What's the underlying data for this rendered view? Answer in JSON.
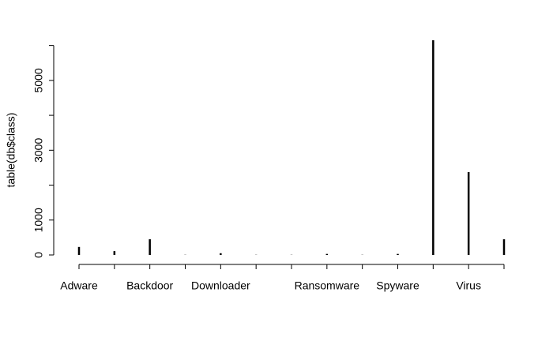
{
  "chart_data": {
    "type": "histogram-lines",
    "y_label": "table(db$class)",
    "categories": [
      "Adware",
      null,
      "Backdoor",
      null,
      "Downloader",
      null,
      null,
      "Ransomware",
      null,
      "Spyware",
      null,
      "Virus",
      null
    ],
    "values": [
      230,
      110,
      450,
      5,
      50,
      5,
      5,
      30,
      5,
      30,
      6150,
      2375,
      450
    ],
    "color": "#000000",
    "ylim": [
      0,
      6150
    ],
    "yticks": [
      0,
      1000,
      3000,
      5000
    ],
    "yticks_unlabeled": [
      2000,
      4000,
      6000
    ]
  }
}
